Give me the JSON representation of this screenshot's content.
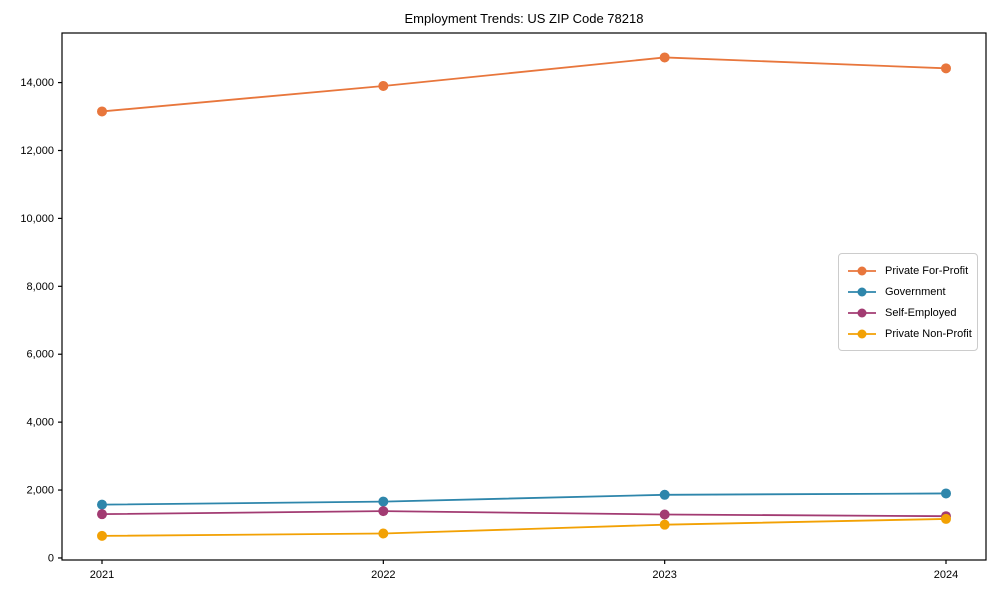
{
  "chart_data": {
    "type": "line",
    "title": "Employment Trends: US ZIP Code 78218",
    "categories": [
      "2021",
      "2022",
      "2023",
      "2024"
    ],
    "series": [
      {
        "name": "Private For-Profit",
        "color": "#E8763C",
        "values": [
          13150,
          13900,
          14740,
          14420
        ]
      },
      {
        "name": "Government",
        "color": "#2E86AB",
        "values": [
          1570,
          1660,
          1860,
          1900
        ]
      },
      {
        "name": "Self-Employed",
        "color": "#A23B72",
        "values": [
          1290,
          1380,
          1280,
          1230
        ]
      },
      {
        "name": "Private Non-Profit",
        "color": "#F2A104",
        "values": [
          650,
          720,
          980,
          1150
        ]
      }
    ],
    "xlabel": "",
    "ylabel": "",
    "ylim": [
      -60,
      15460
    ],
    "yticks": [
      0,
      2000,
      4000,
      6000,
      8000,
      10000,
      12000,
      14000
    ],
    "ytick_labels": [
      "0",
      "2,000",
      "4,000",
      "6,000",
      "8,000",
      "10,000",
      "12,000",
      "14,000"
    ],
    "grid": false,
    "legend_position": "center right",
    "axis_color": "#000000",
    "tick_label_color": "#000000",
    "legend_border_color": "#cccccc",
    "background_color": "#ffffff"
  }
}
